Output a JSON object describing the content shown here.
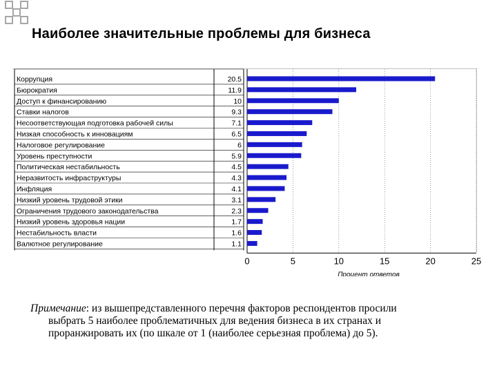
{
  "title": "Наиболее значительные проблемы для бизнеса",
  "note": {
    "label": "Примечание",
    "line1": ": из вышепредставленного перечня факторов респондентов просили",
    "line2": "выбрать 5 наиболее проблематичных для ведения бизнеса в их странах и",
    "line3": "проранжировать их (по шкале от 1 (наиболее серьезная проблема) до 5)."
  },
  "colors": {
    "bar": "#1a1acd",
    "grid": "#808080",
    "corner": "#a6a6a6"
  },
  "chart_data": {
    "type": "bar",
    "orientation": "horizontal",
    "categories": [
      "Коррупция",
      "Бюрократия",
      "Доступ к финансированию",
      "Ставки налогов",
      "Несоответствующая подготовка рабочей силы",
      "Низкая способность к инновациям",
      "Налоговое регулирование",
      "Уровень преступности",
      "Политическая нестабильность",
      "Неразвитость инфраструктуры",
      "Инфляция",
      "Низкий уровень трудовой этики",
      "Ограничения трудового законодательства",
      "Низкий уровень здоровья нации",
      "Нестабильность власти",
      "Валютное регулирование"
    ],
    "values": [
      20.5,
      11.9,
      10,
      9.3,
      7.1,
      6.5,
      6,
      5.9,
      4.5,
      4.3,
      4.1,
      3.1,
      2.3,
      1.7,
      1.6,
      1.1
    ],
    "value_labels": [
      "20.5",
      "11.9",
      "10",
      "9.3",
      "7.1",
      "6.5",
      "6",
      "5.9",
      "4.5",
      "4.3",
      "4.1",
      "3.1",
      "2.3",
      "1.7",
      "1.6",
      "1.1"
    ],
    "xlim": [
      0,
      25
    ],
    "xticks": [
      "0",
      "5",
      "10",
      "15",
      "20",
      "25"
    ],
    "xtick_values": [
      0,
      5,
      10,
      15,
      20,
      25
    ],
    "xlabel": "Процент ответов",
    "grid": true
  }
}
